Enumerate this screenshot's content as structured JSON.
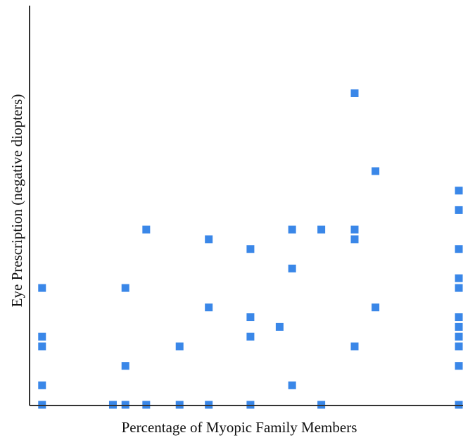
{
  "chart_data": {
    "type": "scatter",
    "title": "",
    "xlabel": "Percentage of Myopic Family Members",
    "ylabel": "Eye Prescription (negative diopters)",
    "xlim": [
      0,
      1.04
    ],
    "ylim": [
      0,
      8.2
    ],
    "grid": false,
    "legend": "none",
    "marker_color": "#3A87E8",
    "points": [
      {
        "x": 0.03,
        "y": 0.0
      },
      {
        "x": 0.03,
        "y": 0.4
      },
      {
        "x": 0.03,
        "y": 1.2
      },
      {
        "x": 0.03,
        "y": 1.4
      },
      {
        "x": 0.03,
        "y": 2.4
      },
      {
        "x": 0.2,
        "y": 0.0
      },
      {
        "x": 0.23,
        "y": 0.0
      },
      {
        "x": 0.23,
        "y": 0.8
      },
      {
        "x": 0.23,
        "y": 2.4
      },
      {
        "x": 0.28,
        "y": 0.0
      },
      {
        "x": 0.28,
        "y": 3.6
      },
      {
        "x": 0.36,
        "y": 0.0
      },
      {
        "x": 0.36,
        "y": 1.2
      },
      {
        "x": 0.43,
        "y": 0.0
      },
      {
        "x": 0.43,
        "y": 2.0
      },
      {
        "x": 0.43,
        "y": 3.4
      },
      {
        "x": 0.53,
        "y": 0.0
      },
      {
        "x": 0.53,
        "y": 1.4
      },
      {
        "x": 0.53,
        "y": 1.8
      },
      {
        "x": 0.53,
        "y": 3.2
      },
      {
        "x": 0.6,
        "y": 1.6
      },
      {
        "x": 0.63,
        "y": 0.4
      },
      {
        "x": 0.63,
        "y": 2.8
      },
      {
        "x": 0.63,
        "y": 3.6
      },
      {
        "x": 0.7,
        "y": 0.0
      },
      {
        "x": 0.7,
        "y": 3.6
      },
      {
        "x": 0.78,
        "y": 1.2
      },
      {
        "x": 0.78,
        "y": 3.4
      },
      {
        "x": 0.78,
        "y": 3.6
      },
      {
        "x": 0.78,
        "y": 6.4
      },
      {
        "x": 0.83,
        "y": 2.0
      },
      {
        "x": 0.83,
        "y": 4.8
      },
      {
        "x": 1.03,
        "y": 0.0
      },
      {
        "x": 1.03,
        "y": 0.8
      },
      {
        "x": 1.03,
        "y": 1.2
      },
      {
        "x": 1.03,
        "y": 1.4
      },
      {
        "x": 1.03,
        "y": 1.6
      },
      {
        "x": 1.03,
        "y": 1.8
      },
      {
        "x": 1.03,
        "y": 2.4
      },
      {
        "x": 1.03,
        "y": 2.6
      },
      {
        "x": 1.03,
        "y": 3.2
      },
      {
        "x": 1.03,
        "y": 4.0
      },
      {
        "x": 1.03,
        "y": 4.4
      }
    ]
  }
}
